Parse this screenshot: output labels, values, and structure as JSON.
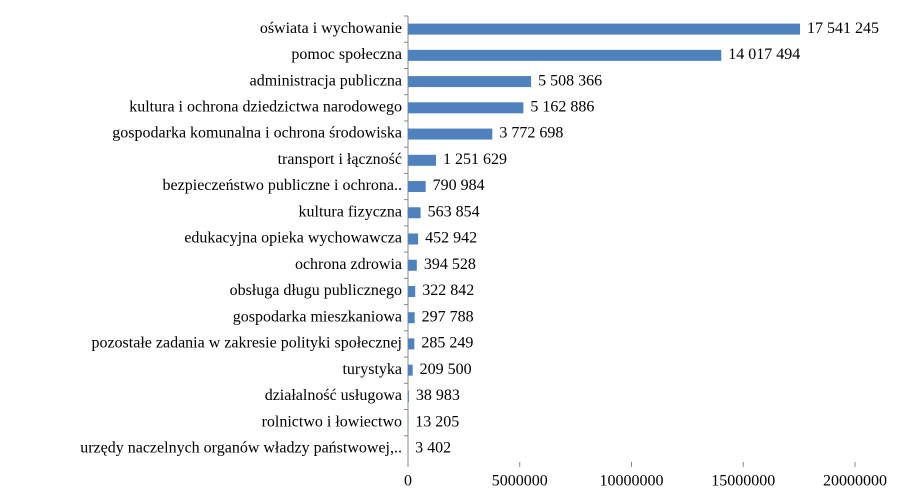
{
  "chart_data": {
    "type": "bar",
    "orientation": "horizontal",
    "categories": [
      "oświata i wychowanie",
      "pomoc społeczna",
      "administracja publiczna",
      "kultura i ochrona dziedzictwa narodowego",
      "gospodarka komunalna i ochrona środowiska",
      "transport i łączność",
      "bezpieczeństwo publiczne i ochrona..",
      "kultura fizyczna",
      "edukacyjna opieka wychowawcza",
      "ochrona zdrowia",
      "obsługa długu publicznego",
      "gospodarka mieszkaniowa",
      "pozostałe zadania w zakresie polityki społecznej",
      "turystyka",
      "działalność usługowa",
      "rolnictwo i łowiectwo",
      "urzędy naczelnych organów władzy państwowej,.."
    ],
    "values": [
      17541245,
      14017494,
      5508366,
      5162886,
      3772698,
      1251629,
      790984,
      563854,
      452942,
      394528,
      322842,
      297788,
      285249,
      209500,
      38983,
      13205,
      3402
    ],
    "value_labels": [
      "17 541 245",
      "14 017 494",
      "5 508 366",
      "5 162 886",
      "3 772 698",
      "1 251 629",
      "790 984",
      "563 854",
      "452 942",
      "394 528",
      "322 842",
      "297 788",
      "285 249",
      "209 500",
      "38 983",
      "13 205",
      "3 402"
    ],
    "color": "#4f81bd",
    "xlim": [
      0,
      20000000
    ],
    "xticks": [
      0,
      5000000,
      10000000,
      15000000,
      20000000
    ]
  }
}
